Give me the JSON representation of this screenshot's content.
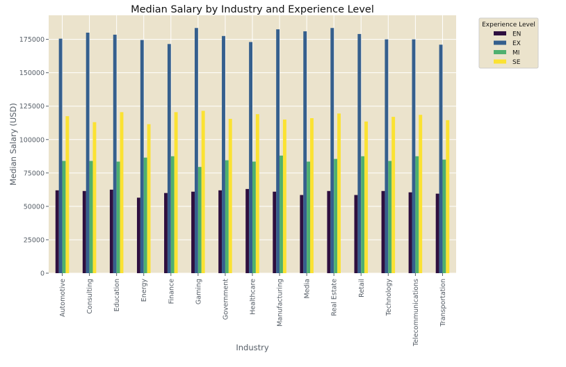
{
  "chart_data": {
    "type": "bar",
    "title": "Median Salary by Industry and Experience Level",
    "xlabel": "Industry",
    "ylabel": "Median Salary (USD)",
    "ylim": [
      0,
      193000
    ],
    "yticks": [
      0,
      25000,
      50000,
      75000,
      100000,
      125000,
      150000,
      175000
    ],
    "grid": true,
    "legend_title": "Experience Level",
    "legend_position": "upper right, outside plot",
    "categories": [
      "Automotive",
      "Consulting",
      "Education",
      "Energy",
      "Finance",
      "Gaming",
      "Government",
      "Healthcare",
      "Manufacturing",
      "Media",
      "Real Estate",
      "Retail",
      "Technology",
      "Telecommunications",
      "Transportation"
    ],
    "series": [
      {
        "name": "EN",
        "color": "#2e0f3f",
        "values": [
          62000,
          61500,
          62500,
          56500,
          60000,
          61000,
          62000,
          63000,
          61000,
          58500,
          61500,
          58500,
          61500,
          60500,
          59500
        ]
      },
      {
        "name": "EX",
        "color": "#355f8d",
        "values": [
          175500,
          180000,
          178500,
          174500,
          171500,
          183500,
          177500,
          173000,
          182500,
          181000,
          183500,
          179000,
          175000,
          175000,
          171000
        ]
      },
      {
        "name": "MI",
        "color": "#4fb06f",
        "values": [
          84000,
          84000,
          83500,
          86500,
          87500,
          79500,
          84500,
          83500,
          88000,
          83500,
          85500,
          87500,
          84000,
          87500,
          85000
        ]
      },
      {
        "name": "SE",
        "color": "#fbe232",
        "values": [
          117500,
          113000,
          120500,
          111500,
          120500,
          121500,
          115500,
          119000,
          115000,
          116000,
          119500,
          113500,
          117000,
          118500,
          114500
        ]
      }
    ]
  }
}
